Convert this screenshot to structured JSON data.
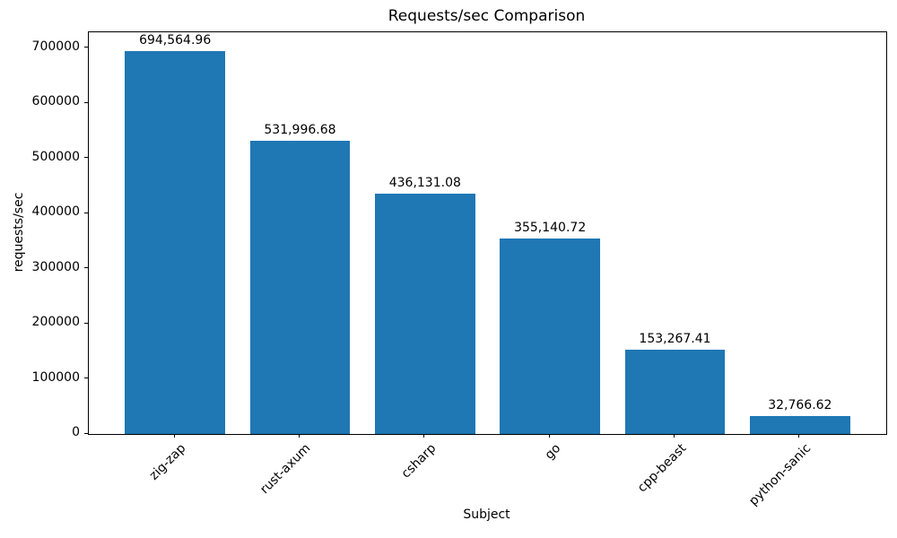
{
  "chart_data": {
    "type": "bar",
    "title": "Requests/sec Comparison",
    "xlabel": "Subject",
    "ylabel": "requests/sec",
    "categories": [
      "zig-zap",
      "rust-axum",
      "csharp",
      "go",
      "cpp-beast",
      "python-sanic"
    ],
    "values": [
      694564.96,
      531996.68,
      436131.08,
      355140.72,
      153267.41,
      32766.62
    ],
    "bar_labels": [
      "694,564.96",
      "531,996.68",
      "436,131.08",
      "355,140.72",
      "153,267.41",
      "32,766.62"
    ],
    "bar_color": "#1f77b4",
    "ylim": [
      0,
      729293
    ],
    "yticks": [
      0,
      100000,
      200000,
      300000,
      400000,
      500000,
      600000,
      700000
    ],
    "ytick_labels": [
      "0",
      "100000",
      "200000",
      "300000",
      "400000",
      "500000",
      "600000",
      "700000"
    ],
    "x_tick_rotation": 45,
    "grid": false,
    "legend": null
  }
}
